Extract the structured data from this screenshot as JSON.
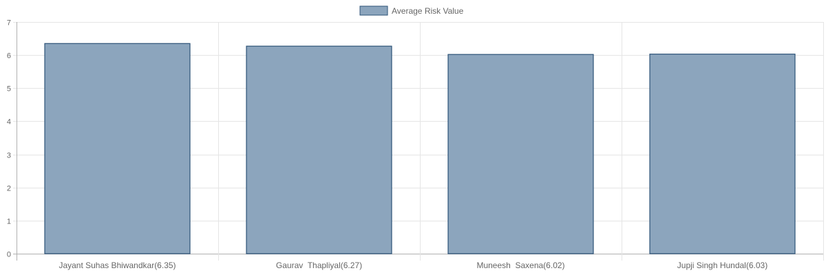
{
  "chart_data": {
    "type": "bar",
    "categories": [
      "Jayant Suhas Bhiwandkar(6.35)",
      "Gaurav  Thapliyal(6.27)",
      "Muneesh  Saxena(6.02)",
      "Jupji Singh Hundal(6.03)"
    ],
    "series": [
      {
        "name": "Average Risk Value",
        "values": [
          6.35,
          6.27,
          6.02,
          6.03
        ]
      }
    ],
    "ylim": [
      0,
      7
    ],
    "yticks": [
      "0",
      "1",
      "2",
      "3",
      "4",
      "5",
      "6",
      "7"
    ],
    "grid": true,
    "legend_position": "top-center",
    "colors": {
      "bar_fill": "#8ca5bd",
      "bar_stroke": "#2c5277",
      "grid": "#e5e5e5",
      "axis": "#b0b0b0"
    }
  }
}
